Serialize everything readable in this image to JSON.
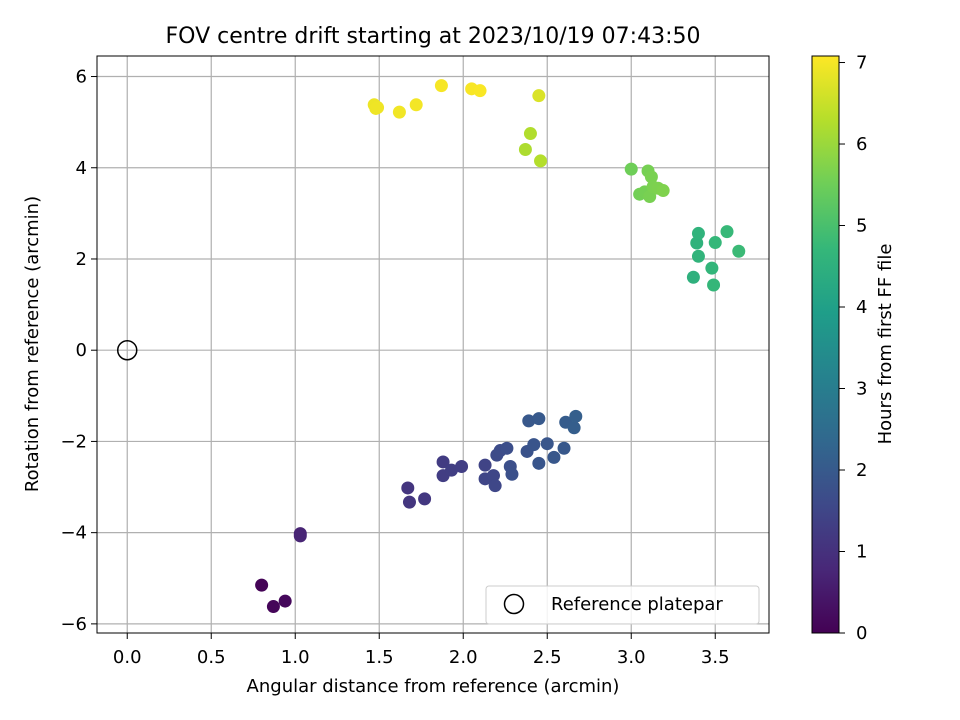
{
  "chart_data": {
    "type": "scatter",
    "title": "FOV centre drift starting at 2023/10/19 07:43:50",
    "xlabel": "Angular distance from reference (arcmin)",
    "ylabel": "Rotation from reference (arcmin)",
    "xlim": [
      -0.18,
      3.82
    ],
    "ylim": [
      -6.2,
      6.45
    ],
    "xticks": [
      0.0,
      0.5,
      1.0,
      1.5,
      2.0,
      2.5,
      3.0,
      3.5
    ],
    "xtick_labels": [
      "0.0",
      "0.5",
      "1.0",
      "1.5",
      "2.0",
      "2.5",
      "3.0",
      "3.5"
    ],
    "yticks": [
      -6,
      -4,
      -2,
      0,
      2,
      4,
      6
    ],
    "ytick_labels": [
      "−6",
      "−4",
      "−2",
      "0",
      "2",
      "4",
      "6"
    ],
    "grid": true,
    "legend": {
      "placement": "lower-right",
      "entries": [
        "Reference platepar"
      ]
    },
    "colorbar": {
      "label": "Hours from first FF file",
      "range": [
        0,
        7.08
      ],
      "ticks": [
        0,
        1,
        2,
        3,
        4,
        5,
        6,
        7
      ],
      "tick_labels": [
        "0",
        "1",
        "2",
        "3",
        "4",
        "5",
        "6",
        "7"
      ],
      "colormap": "viridis",
      "stops": [
        "#440154",
        "#482878",
        "#3e4989",
        "#31688e",
        "#26828e",
        "#1f9e89",
        "#35b779",
        "#6ece58",
        "#b5de2b",
        "#fde725"
      ]
    },
    "reference": {
      "x": 0.0,
      "y": 0.0
    },
    "points": [
      {
        "x": 0.8,
        "y": -5.15,
        "t": 0.05
      },
      {
        "x": 0.87,
        "y": -5.62,
        "t": 0.1
      },
      {
        "x": 0.94,
        "y": -5.5,
        "t": 0.15
      },
      {
        "x": 1.03,
        "y": -4.02,
        "t": 0.7
      },
      {
        "x": 1.03,
        "y": -4.07,
        "t": 0.72
      },
      {
        "x": 1.67,
        "y": -3.02,
        "t": 1.1
      },
      {
        "x": 1.68,
        "y": -3.33,
        "t": 1.12
      },
      {
        "x": 1.77,
        "y": -3.26,
        "t": 1.15
      },
      {
        "x": 1.88,
        "y": -2.45,
        "t": 1.25
      },
      {
        "x": 1.88,
        "y": -2.75,
        "t": 1.28
      },
      {
        "x": 1.93,
        "y": -2.63,
        "t": 1.3
      },
      {
        "x": 1.99,
        "y": -2.55,
        "t": 1.32
      },
      {
        "x": 2.13,
        "y": -2.52,
        "t": 1.45
      },
      {
        "x": 2.13,
        "y": -2.82,
        "t": 1.47
      },
      {
        "x": 2.18,
        "y": -2.75,
        "t": 1.5
      },
      {
        "x": 2.19,
        "y": -2.97,
        "t": 1.52
      },
      {
        "x": 2.2,
        "y": -2.3,
        "t": 1.62
      },
      {
        "x": 2.22,
        "y": -2.2,
        "t": 1.65
      },
      {
        "x": 2.26,
        "y": -2.15,
        "t": 1.7
      },
      {
        "x": 2.28,
        "y": -2.55,
        "t": 1.72
      },
      {
        "x": 2.29,
        "y": -2.72,
        "t": 1.74
      },
      {
        "x": 2.38,
        "y": -2.22,
        "t": 1.8
      },
      {
        "x": 2.39,
        "y": -1.55,
        "t": 1.95
      },
      {
        "x": 2.42,
        "y": -2.07,
        "t": 1.85
      },
      {
        "x": 2.45,
        "y": -2.48,
        "t": 1.88
      },
      {
        "x": 2.45,
        "y": -1.5,
        "t": 1.98
      },
      {
        "x": 2.5,
        "y": -2.05,
        "t": 1.9
      },
      {
        "x": 2.54,
        "y": -2.35,
        "t": 1.92
      },
      {
        "x": 2.6,
        "y": -2.15,
        "t": 1.96
      },
      {
        "x": 2.61,
        "y": -1.58,
        "t": 2.05
      },
      {
        "x": 2.66,
        "y": -1.7,
        "t": 2.1
      },
      {
        "x": 2.67,
        "y": -1.45,
        "t": 2.12
      },
      {
        "x": 3.37,
        "y": 1.6,
        "t": 4.5
      },
      {
        "x": 3.39,
        "y": 2.35,
        "t": 4.55
      },
      {
        "x": 3.4,
        "y": 2.56,
        "t": 4.58
      },
      {
        "x": 3.4,
        "y": 2.06,
        "t": 4.6
      },
      {
        "x": 3.48,
        "y": 1.8,
        "t": 4.65
      },
      {
        "x": 3.49,
        "y": 1.43,
        "t": 4.7
      },
      {
        "x": 3.5,
        "y": 2.36,
        "t": 4.72
      },
      {
        "x": 3.57,
        "y": 2.6,
        "t": 4.75
      },
      {
        "x": 3.64,
        "y": 2.17,
        "t": 4.8
      },
      {
        "x": 3.0,
        "y": 3.97,
        "t": 5.5
      },
      {
        "x": 3.05,
        "y": 3.42,
        "t": 5.55
      },
      {
        "x": 3.08,
        "y": 3.47,
        "t": 5.57
      },
      {
        "x": 3.1,
        "y": 3.93,
        "t": 5.6
      },
      {
        "x": 3.11,
        "y": 3.37,
        "t": 5.62
      },
      {
        "x": 3.12,
        "y": 3.8,
        "t": 5.63
      },
      {
        "x": 3.13,
        "y": 3.58,
        "t": 5.65
      },
      {
        "x": 3.16,
        "y": 3.55,
        "t": 5.67
      },
      {
        "x": 3.19,
        "y": 3.5,
        "t": 5.7
      },
      {
        "x": 2.37,
        "y": 4.4,
        "t": 6.2
      },
      {
        "x": 2.4,
        "y": 4.75,
        "t": 6.25
      },
      {
        "x": 2.46,
        "y": 4.15,
        "t": 6.28
      },
      {
        "x": 2.45,
        "y": 5.58,
        "t": 6.7
      },
      {
        "x": 1.47,
        "y": 5.38,
        "t": 6.9
      },
      {
        "x": 1.48,
        "y": 5.3,
        "t": 6.92
      },
      {
        "x": 1.49,
        "y": 5.32,
        "t": 6.93
      },
      {
        "x": 1.62,
        "y": 5.22,
        "t": 6.95
      },
      {
        "x": 1.72,
        "y": 5.38,
        "t": 6.97
      },
      {
        "x": 1.87,
        "y": 5.8,
        "t": 7.0
      },
      {
        "x": 2.05,
        "y": 5.73,
        "t": 7.02
      },
      {
        "x": 2.1,
        "y": 5.69,
        "t": 7.04
      }
    ]
  }
}
